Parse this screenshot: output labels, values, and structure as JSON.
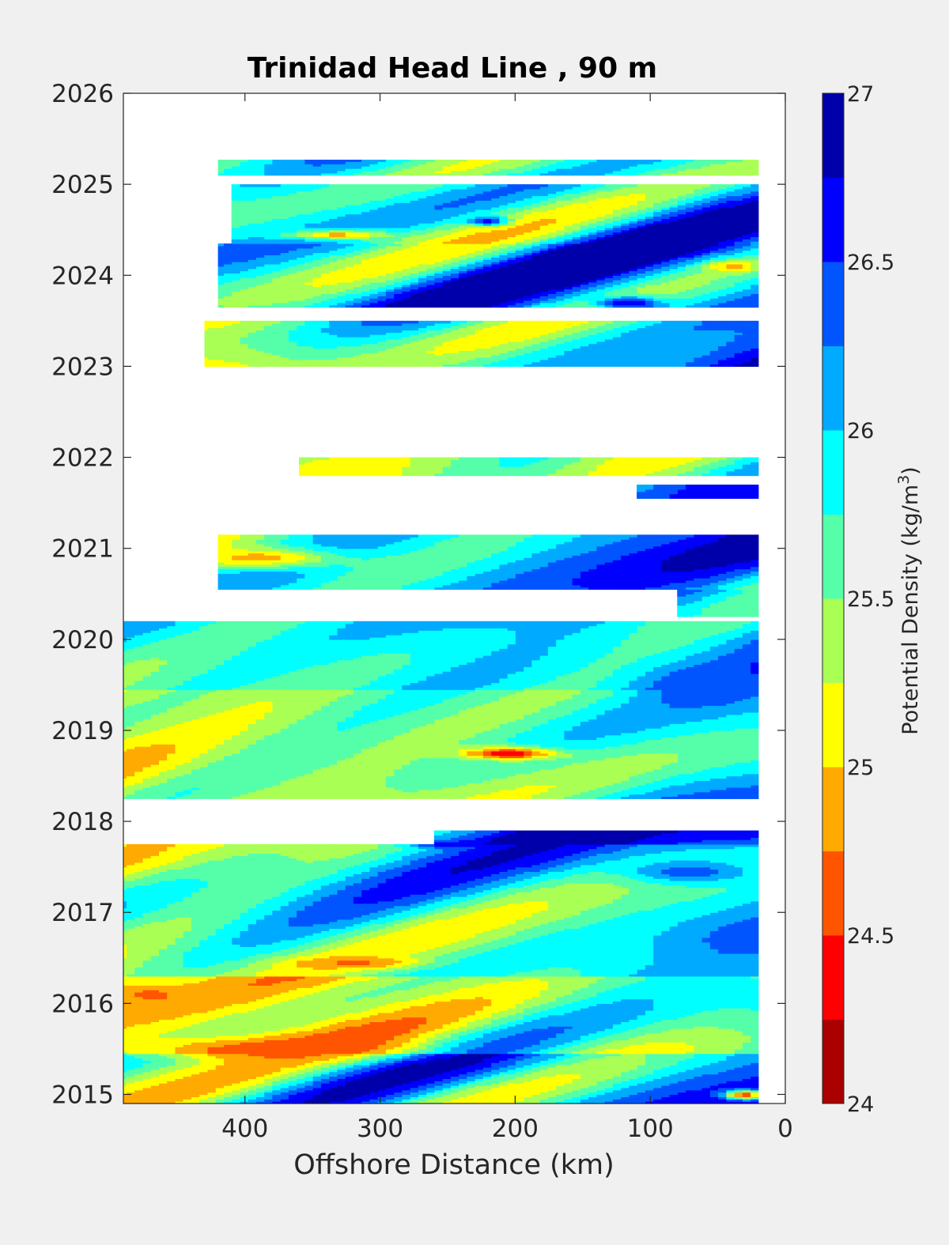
{
  "chart_data": {
    "type": "heatmap",
    "title": "Trinidad Head Line , 90 m",
    "xlabel": "Offshore Distance (km)",
    "ylabel": "",
    "x_reversed": true,
    "xlim": [
      490,
      0
    ],
    "ylim": [
      2014.9,
      2026
    ],
    "xticks": [
      400,
      300,
      200,
      100,
      0
    ],
    "xtick_labels": [
      "400",
      "300",
      "200",
      "100",
      "0"
    ],
    "yticks": [
      2015,
      2016,
      2017,
      2018,
      2019,
      2020,
      2021,
      2022,
      2023,
      2024,
      2025,
      2026
    ],
    "ytick_labels": [
      "2015",
      "2016",
      "2017",
      "2018",
      "2019",
      "2020",
      "2021",
      "2022",
      "2023",
      "2024",
      "2025",
      "2026"
    ],
    "colorbar": {
      "label": "Potential Density (kg/m",
      "label_sup": "3",
      "label_tail": ")",
      "limits": [
        24,
        27
      ],
      "ticks": [
        24,
        24.5,
        25,
        25.5,
        26,
        26.5,
        27
      ],
      "tick_labels": [
        "24",
        "24.5",
        "25",
        "25.5",
        "26",
        "26.5",
        "27"
      ],
      "levels": 12,
      "colors": [
        "#aa0000",
        "#ff0000",
        "#ff5500",
        "#ffaa00",
        "#ffff00",
        "#aaff55",
        "#55ffaa",
        "#00ffff",
        "#00aaff",
        "#0055ff",
        "#0000ff",
        "#0000aa"
      ]
    },
    "data_segments": [
      {
        "t0": 2014.9,
        "t1": 2015.45,
        "x_far": 490,
        "base": 25.6,
        "east": 0.7,
        "north": 0
      },
      {
        "t0": 2015.45,
        "t1": 2016.3,
        "x_far": 490,
        "base": 25.0,
        "east": 0.9,
        "north": 0.1
      },
      {
        "t0": 2016.3,
        "t1": 2017.75,
        "x_far": 490,
        "base": 25.45,
        "east": 0.75,
        "north": 0.05
      },
      {
        "t0": 2017.75,
        "t1": 2017.9,
        "x_far": 260,
        "base": 25.9,
        "east": 0.6,
        "north": 0
      },
      {
        "t0": 2018.25,
        "t1": 2019.45,
        "x_far": 490,
        "base": 25.3,
        "east": 0.8,
        "north": 0.1
      },
      {
        "t0": 2019.45,
        "t1": 2020.2,
        "x_far": 490,
        "base": 25.6,
        "east": 0.7,
        "north": 0.1
      },
      {
        "t0": 2020.25,
        "t1": 2020.55,
        "x_far": 80,
        "base": 26.2,
        "east": 0.2,
        "north": 0
      },
      {
        "t0": 2020.55,
        "t1": 2021.15,
        "x_far": 420,
        "base": 25.6,
        "east": 0.7,
        "north": 0.05
      },
      {
        "t0": 2021.55,
        "t1": 2021.7,
        "x_far": 110,
        "base": 26.3,
        "east": 0.2,
        "north": 0
      },
      {
        "t0": 2021.8,
        "t1": 2022.0,
        "x_far": 360,
        "base": 25.3,
        "east": 0.7,
        "north": 0
      },
      {
        "t0": 2023.0,
        "t1": 2023.5,
        "x_far": 430,
        "base": 25.2,
        "east": 1.1,
        "north": 0.1
      },
      {
        "t0": 2023.65,
        "t1": 2024.35,
        "x_far": 420,
        "base": 25.9,
        "east": 0.5,
        "north": 0.1
      },
      {
        "t0": 2024.35,
        "t1": 2025.0,
        "x_far": 410,
        "base": 25.7,
        "east": 0.6,
        "north": 0
      },
      {
        "t0": 2025.1,
        "t1": 2025.27,
        "x_far": 420,
        "base": 25.5,
        "east": 0.6,
        "north": 0
      }
    ],
    "features": [
      {
        "x": 205,
        "y": 2018.75,
        "value": 24.3,
        "rx": 35,
        "ry": 0.07
      },
      {
        "x": 470,
        "y": 2016.1,
        "value": 24.7,
        "rx": 25,
        "ry": 0.1
      },
      {
        "x": 380,
        "y": 2015.5,
        "value": 24.6,
        "rx": 90,
        "ry": 0.12
      },
      {
        "x": 320,
        "y": 2016.45,
        "value": 24.7,
        "rx": 45,
        "ry": 0.06
      },
      {
        "x": 115,
        "y": 2023.7,
        "value": 26.8,
        "rx": 25,
        "ry": 0.07
      },
      {
        "x": 40,
        "y": 2024.1,
        "value": 24.9,
        "rx": 20,
        "ry": 0.06
      },
      {
        "x": 30,
        "y": 2015.0,
        "value": 24.5,
        "rx": 15,
        "ry": 0.05
      },
      {
        "x": 390,
        "y": 2020.9,
        "value": 24.9,
        "rx": 60,
        "ry": 0.12
      },
      {
        "x": 30,
        "y": 2016.7,
        "value": 26.4,
        "rx": 30,
        "ry": 0.18
      },
      {
        "x": 60,
        "y": 2019.5,
        "value": 26.5,
        "rx": 40,
        "ry": 0.2
      },
      {
        "x": 70,
        "y": 2017.45,
        "value": 26.4,
        "rx": 45,
        "ry": 0.12
      },
      {
        "x": 220,
        "y": 2024.6,
        "value": 26.6,
        "rx": 15,
        "ry": 0.05
      },
      {
        "x": 330,
        "y": 2024.45,
        "value": 24.9,
        "rx": 40,
        "ry": 0.05
      },
      {
        "x": 250,
        "y": 2017.75,
        "value": 26.6,
        "rx": 30,
        "ry": 0.04
      }
    ]
  }
}
